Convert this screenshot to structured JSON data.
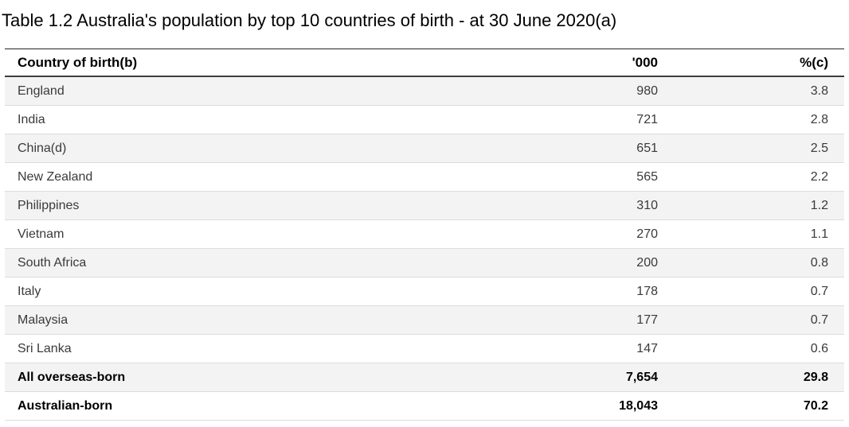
{
  "title": "Table 1.2 Australia's population by top 10 countries of birth - at 30 June 2020(a)",
  "table": {
    "columns": {
      "country": "Country of birth(b)",
      "thousands": "'000",
      "percent": "%(c)"
    },
    "rows": [
      {
        "country": "England",
        "thousands": "980",
        "percent": "3.8",
        "emphasis": false
      },
      {
        "country": "India",
        "thousands": "721",
        "percent": "2.8",
        "emphasis": false
      },
      {
        "country": "China(d)",
        "thousands": "651",
        "percent": "2.5",
        "emphasis": false
      },
      {
        "country": "New Zealand",
        "thousands": "565",
        "percent": "2.2",
        "emphasis": false
      },
      {
        "country": "Philippines",
        "thousands": "310",
        "percent": "1.2",
        "emphasis": false
      },
      {
        "country": "Vietnam",
        "thousands": "270",
        "percent": "1.1",
        "emphasis": false
      },
      {
        "country": "South Africa",
        "thousands": "200",
        "percent": "0.8",
        "emphasis": false
      },
      {
        "country": "Italy",
        "thousands": "178",
        "percent": "0.7",
        "emphasis": false
      },
      {
        "country": "Malaysia",
        "thousands": "177",
        "percent": "0.7",
        "emphasis": false
      },
      {
        "country": "Sri Lanka",
        "thousands": "147",
        "percent": "0.6",
        "emphasis": false
      },
      {
        "country": "All overseas-born",
        "thousands": "7,654",
        "percent": "29.8",
        "emphasis": true
      },
      {
        "country": "Australian-born",
        "thousands": "18,043",
        "percent": "70.2",
        "emphasis": true
      }
    ]
  },
  "colors": {
    "stripe": "#f3f3f3",
    "row_separator": "#dcdcdc",
    "header_rule_top": "#262626",
    "header_rule_bottom": "#3d3d3d",
    "body_text": "#3a3a3a",
    "emphasis_text": "#000000"
  },
  "chart_data": {
    "type": "table",
    "title": "Table 1.2 Australia's population by top 10 countries of birth - at 30 June 2020(a)",
    "columns": [
      "Country of birth(b)",
      "'000",
      "%(c)"
    ],
    "rows": [
      [
        "England",
        980,
        3.8
      ],
      [
        "India",
        721,
        2.8
      ],
      [
        "China(d)",
        651,
        2.5
      ],
      [
        "New Zealand",
        565,
        2.2
      ],
      [
        "Philippines",
        310,
        1.2
      ],
      [
        "Vietnam",
        270,
        1.1
      ],
      [
        "South Africa",
        200,
        0.8
      ],
      [
        "Italy",
        178,
        0.7
      ],
      [
        "Malaysia",
        177,
        0.7
      ],
      [
        "Sri Lanka",
        147,
        0.6
      ],
      [
        "All overseas-born",
        7654,
        29.8
      ],
      [
        "Australian-born",
        18043,
        70.2
      ]
    ],
    "notes": "Footnote markers (a)-(d) appear in title and labels; zebra striping on alternating rows; summary rows bold."
  }
}
